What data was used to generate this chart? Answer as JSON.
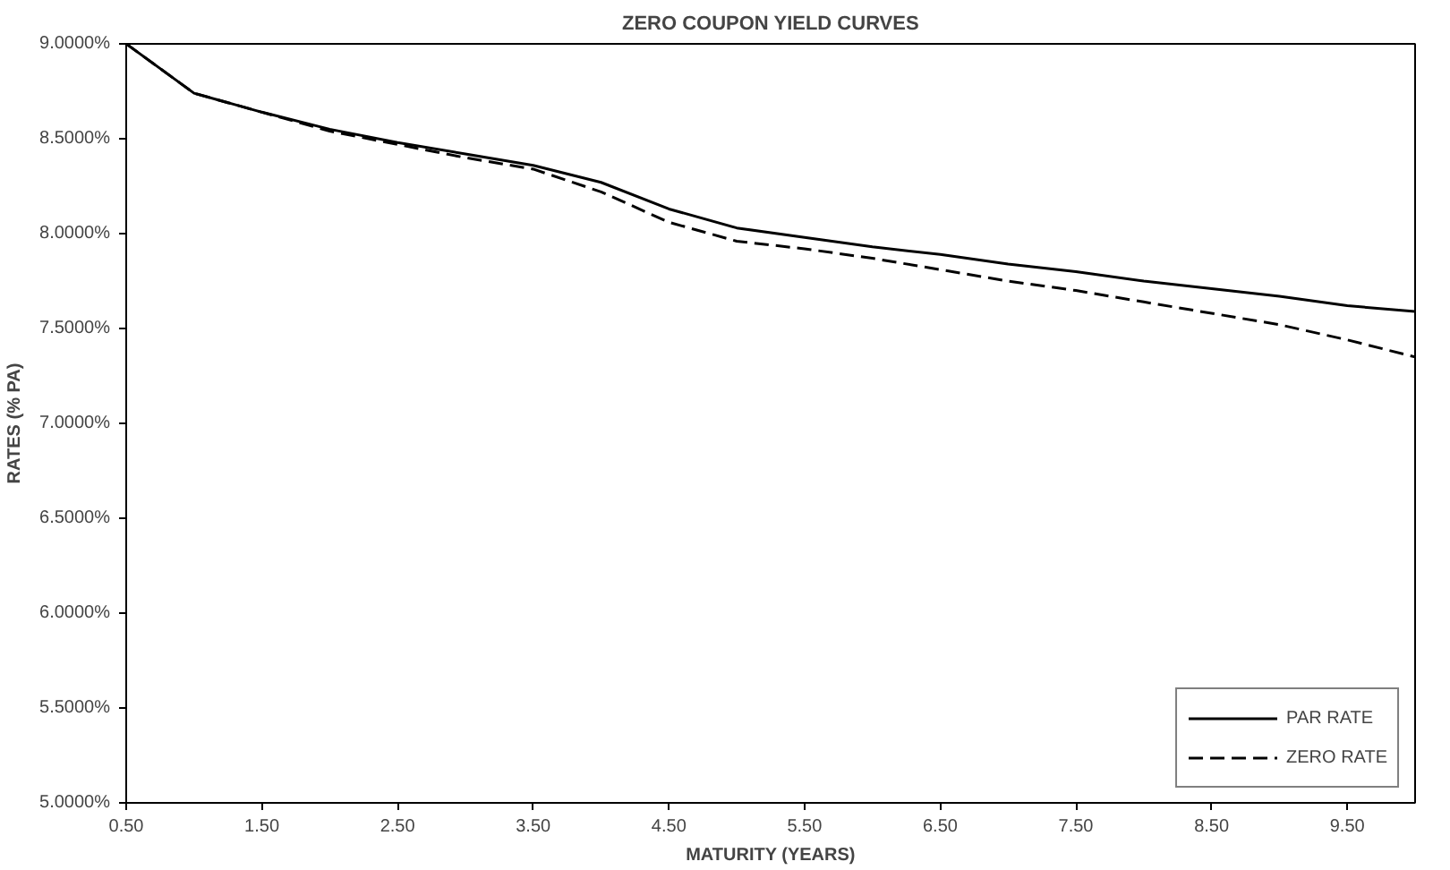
{
  "chart_data": {
    "type": "line",
    "title": "ZERO COUPON YIELD CURVES",
    "xlabel": "MATURITY (YEARS)",
    "ylabel": "RATES (% PA)",
    "x": [
      0.5,
      1.0,
      1.5,
      2.0,
      2.5,
      3.0,
      3.5,
      4.0,
      4.5,
      5.0,
      5.5,
      6.0,
      6.5,
      7.0,
      7.5,
      8.0,
      8.5,
      9.0,
      9.5,
      10.0
    ],
    "series": [
      {
        "name": "PAR RATE",
        "color": "#000000",
        "line_style": "solid",
        "values": [
          9.0,
          8.74,
          8.64,
          8.55,
          8.48,
          8.42,
          8.36,
          8.27,
          8.13,
          8.03,
          7.98,
          7.93,
          7.89,
          7.84,
          7.8,
          7.75,
          7.71,
          7.67,
          7.62,
          7.59
        ]
      },
      {
        "name": "ZERO RATE",
        "color": "#000000",
        "line_style": "dashed",
        "values": [
          9.0,
          8.74,
          8.64,
          8.54,
          8.47,
          8.4,
          8.34,
          8.22,
          8.06,
          7.96,
          7.92,
          7.87,
          7.81,
          7.75,
          7.7,
          7.64,
          7.58,
          7.52,
          7.44,
          7.35
        ]
      }
    ],
    "xlim": [
      0.5,
      10
    ],
    "xticks": [
      {
        "value": 0.5,
        "label": "0.50"
      },
      {
        "value": 1.5,
        "label": "1.50"
      },
      {
        "value": 2.5,
        "label": "2.50"
      },
      {
        "value": 3.5,
        "label": "3.50"
      },
      {
        "value": 4.5,
        "label": "4.50"
      },
      {
        "value": 5.5,
        "label": "5.50"
      },
      {
        "value": 6.5,
        "label": "6.50"
      },
      {
        "value": 7.5,
        "label": "7.50"
      },
      {
        "value": 8.5,
        "label": "8.50"
      },
      {
        "value": 9.5,
        "label": "9.50"
      }
    ],
    "ylim": [
      5,
      9
    ],
    "yticks": [
      {
        "value": 5,
        "label": "5.0000%"
      },
      {
        "value": 5.5,
        "label": "5.5000%"
      },
      {
        "value": 6,
        "label": "6.0000%"
      },
      {
        "value": 6.5,
        "label": "6.5000%"
      },
      {
        "value": 7,
        "label": "7.0000%"
      },
      {
        "value": 7.5,
        "label": "7.5000%"
      },
      {
        "value": 8,
        "label": "8.0000%"
      },
      {
        "value": 8.5,
        "label": "8.5000%"
      },
      {
        "value": 9,
        "label": "9.0000%"
      }
    ],
    "grid": false,
    "legend": "bottom right"
  }
}
